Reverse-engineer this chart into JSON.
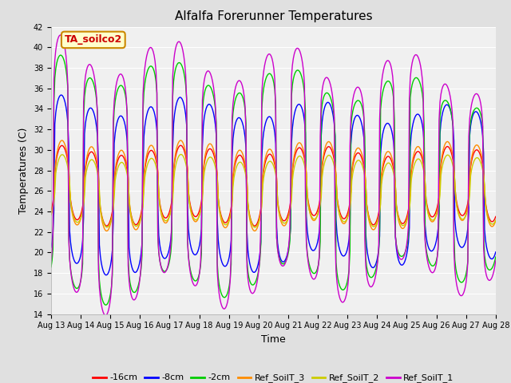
{
  "title": "Alfalfa Forerunner Temperatures",
  "xlabel": "Time",
  "ylabel": "Temperatures (C)",
  "ylim": [
    14,
    42
  ],
  "yticks": [
    14,
    16,
    18,
    20,
    22,
    24,
    26,
    28,
    30,
    32,
    34,
    36,
    38,
    40,
    42
  ],
  "xstart_day": 13,
  "xend_day": 28,
  "colors": {
    "-16cm": "#ff0000",
    "-8cm": "#0000ff",
    "-2cm": "#00cc00",
    "Ref_SoilT_3": "#ff8c00",
    "Ref_SoilT_2": "#cccc00",
    "Ref_SoilT_1": "#cc00cc"
  },
  "legend_labels": [
    "-16cm",
    "-8cm",
    "-2cm",
    "Ref_SoilT_3",
    "Ref_SoilT_2",
    "Ref_SoilT_1"
  ],
  "annotation_text": "TA_soilco2",
  "annotation_color": "#cc0000",
  "annotation_bg": "#ffffcc",
  "annotation_border": "#cc8800",
  "bg_color": "#e0e0e0",
  "plot_bg": "#f0f0f0",
  "grid_color": "#ffffff",
  "title_fontsize": 11,
  "axis_fontsize": 9,
  "tick_fontsize": 7,
  "legend_fontsize": 8,
  "linewidth": 1.0
}
